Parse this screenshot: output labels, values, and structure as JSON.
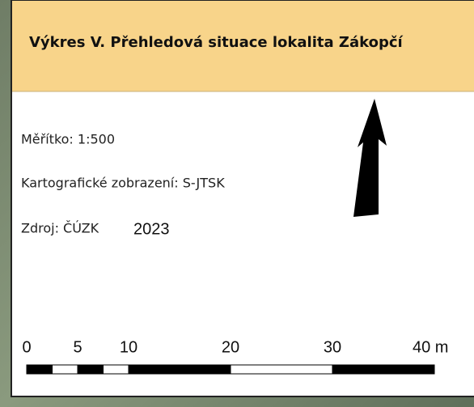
{
  "header": {
    "title": "Výkres V. Přehledová situace lokalita Zákopčí"
  },
  "info": {
    "scale": "Měřítko: 1:500",
    "projection": "Kartografické zobrazení: S-JTSK",
    "source": "Zdroj: ČÚZK",
    "year": "2023"
  },
  "scale_bar": {
    "range": [
      0,
      40
    ],
    "ticks": [
      0,
      5,
      10,
      20,
      30,
      {
        "value": 40,
        "label": "40 m"
      }
    ]
  }
}
